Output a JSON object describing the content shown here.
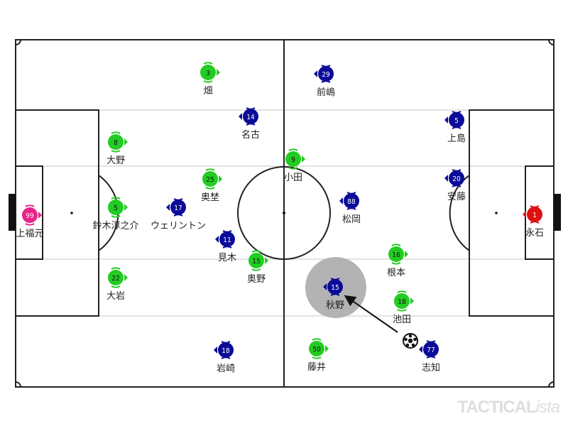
{
  "colors": {
    "home": "#22cc22",
    "away": "#0b0b99",
    "home_gk": "#e8238a",
    "away_gk": "#dd1111",
    "highlight": "#b3b3b3"
  },
  "players": [
    {
      "team": "home",
      "number": "3",
      "name": "畑"
    },
    {
      "team": "home",
      "number": "8",
      "name": "大野"
    },
    {
      "team": "home",
      "number": "25",
      "name": "奥埜"
    },
    {
      "team": "home",
      "number": "5",
      "name": "鈴木淳之介"
    },
    {
      "team": "home",
      "number": "22",
      "name": "大岩"
    },
    {
      "team": "home",
      "number": "15",
      "name": "奥野"
    },
    {
      "team": "home",
      "number": "9",
      "name": "小田"
    },
    {
      "team": "home",
      "number": "16",
      "name": "根本"
    },
    {
      "team": "home",
      "number": "18",
      "name": "池田"
    },
    {
      "team": "home",
      "number": "50",
      "name": "藤井"
    },
    {
      "team": "home_gk",
      "number": "99",
      "name": "上福元"
    },
    {
      "team": "away",
      "number": "29",
      "name": "前嶋"
    },
    {
      "team": "away",
      "number": "14",
      "name": "名古"
    },
    {
      "team": "away",
      "number": "17",
      "name": "ウェリントン"
    },
    {
      "team": "away",
      "number": "11",
      "name": "見木"
    },
    {
      "team": "away",
      "number": "18",
      "name": "岩崎"
    },
    {
      "team": "away",
      "number": "88",
      "name": "松岡"
    },
    {
      "team": "away",
      "number": "15",
      "name": "秋野",
      "highlighted": true
    },
    {
      "team": "away",
      "number": "5",
      "name": "上島"
    },
    {
      "team": "away",
      "number": "20",
      "name": "安藤"
    },
    {
      "team": "away",
      "number": "77",
      "name": "志知"
    },
    {
      "team": "away_gk",
      "number": "1",
      "name": "永石"
    }
  ],
  "ball_icon": "soccer-ball-icon",
  "pass_arrow": {
    "from": "ball",
    "to": "秋野"
  },
  "watermark": {
    "main": "TACTICAL",
    "suffix": "ista"
  }
}
